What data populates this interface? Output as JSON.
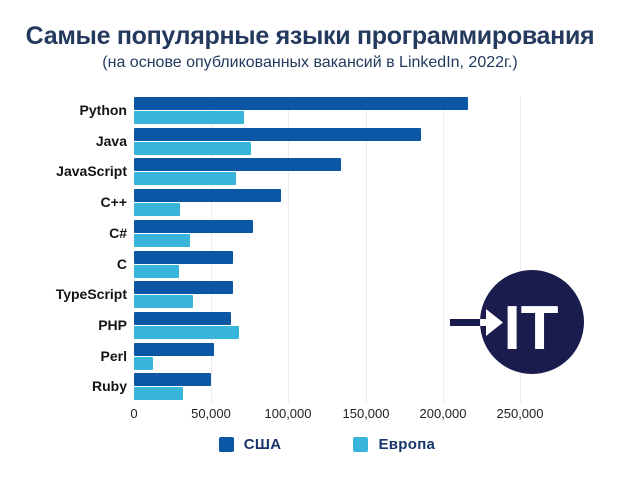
{
  "title": "Самые популярные языки программирования",
  "subtitle": "(на основе опубликованных вакансий в LinkedIn, 2022г.)",
  "logo": {
    "text": "IT",
    "arrow_icon": "right-arrow"
  },
  "colors": {
    "usa_bar": "#0b56a5",
    "europe_bar": "#38b5da",
    "heading_text": "#233a5e",
    "legend_text": "#17366b",
    "logo_circle": "#1a1c4e",
    "gridline": "#ebebeb"
  },
  "chart_data": {
    "type": "bar",
    "orientation": "horizontal",
    "title": "Самые популярные языки программирования",
    "subtitle": "(на основе опубликованных вакансий в LinkedIn, 2022г.)",
    "categories": [
      "Python",
      "Java",
      "JavaScript",
      "C++",
      "C#",
      "C",
      "TypeScript",
      "PHP",
      "Perl",
      "Ruby"
    ],
    "series": [
      {
        "name": "США",
        "color": "#0b56a5",
        "values": [
          216000,
          186000,
          134000,
          95000,
          77000,
          64000,
          64000,
          63000,
          52000,
          50000
        ]
      },
      {
        "name": "Европа",
        "color": "#38b5da",
        "values": [
          71000,
          76000,
          66000,
          30000,
          36000,
          29000,
          38000,
          68000,
          12000,
          32000
        ]
      }
    ],
    "xlabel": "",
    "ylabel": "",
    "xlim": [
      0,
      250000
    ],
    "x_ticks": [
      0,
      50000,
      100000,
      150000,
      200000,
      250000
    ],
    "x_tick_labels": [
      "0",
      "50,000",
      "100,000",
      "150,000",
      "200,000",
      "250,000"
    ],
    "grid": true,
    "legend_position": "bottom"
  }
}
